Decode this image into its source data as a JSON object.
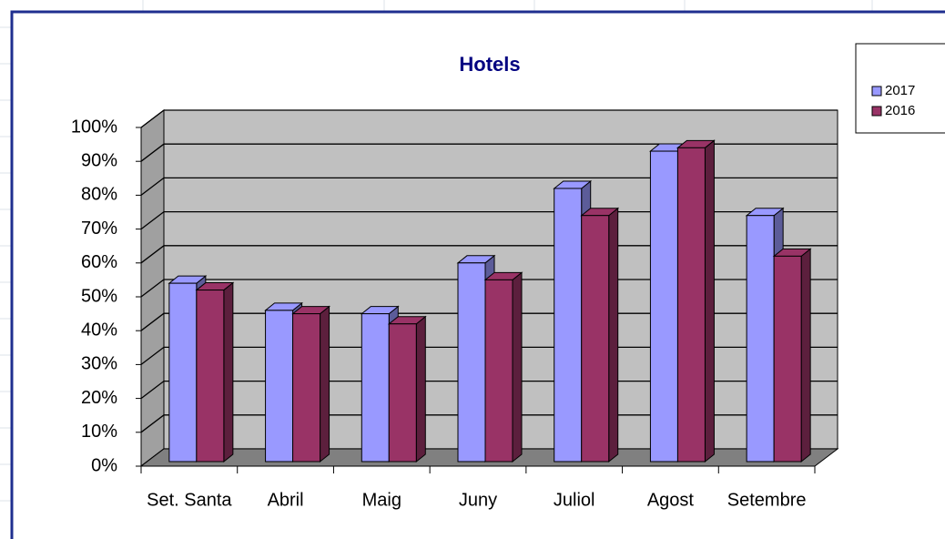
{
  "chart_data": {
    "type": "bar3d",
    "title": "Hotels",
    "categories": [
      "Set. Santa",
      "Abril",
      "Maig",
      "Juny",
      "Juliol",
      "Agost",
      "Setembre"
    ],
    "series": [
      {
        "name": "2017",
        "color": "#9999ff",
        "values": [
          54,
          46,
          45,
          60,
          82,
          93,
          74
        ]
      },
      {
        "name": "2016",
        "color": "#993366",
        "values": [
          52,
          45,
          42,
          55,
          74,
          94,
          62
        ]
      }
    ],
    "ylim": [
      0,
      100
    ],
    "yticks": [
      {
        "value": 0,
        "label": "0%"
      },
      {
        "value": 10,
        "label": "10%"
      },
      {
        "value": 20,
        "label": "20%"
      },
      {
        "value": 30,
        "label": "30%"
      },
      {
        "value": 40,
        "label": "40%"
      },
      {
        "value": 50,
        "label": "50%"
      },
      {
        "value": 60,
        "label": "60%"
      },
      {
        "value": 70,
        "label": "70%"
      },
      {
        "value": 80,
        "label": "80%"
      },
      {
        "value": 90,
        "label": "90%"
      },
      {
        "value": 100,
        "label": "100%"
      }
    ],
    "grid": true,
    "legend": "right"
  }
}
